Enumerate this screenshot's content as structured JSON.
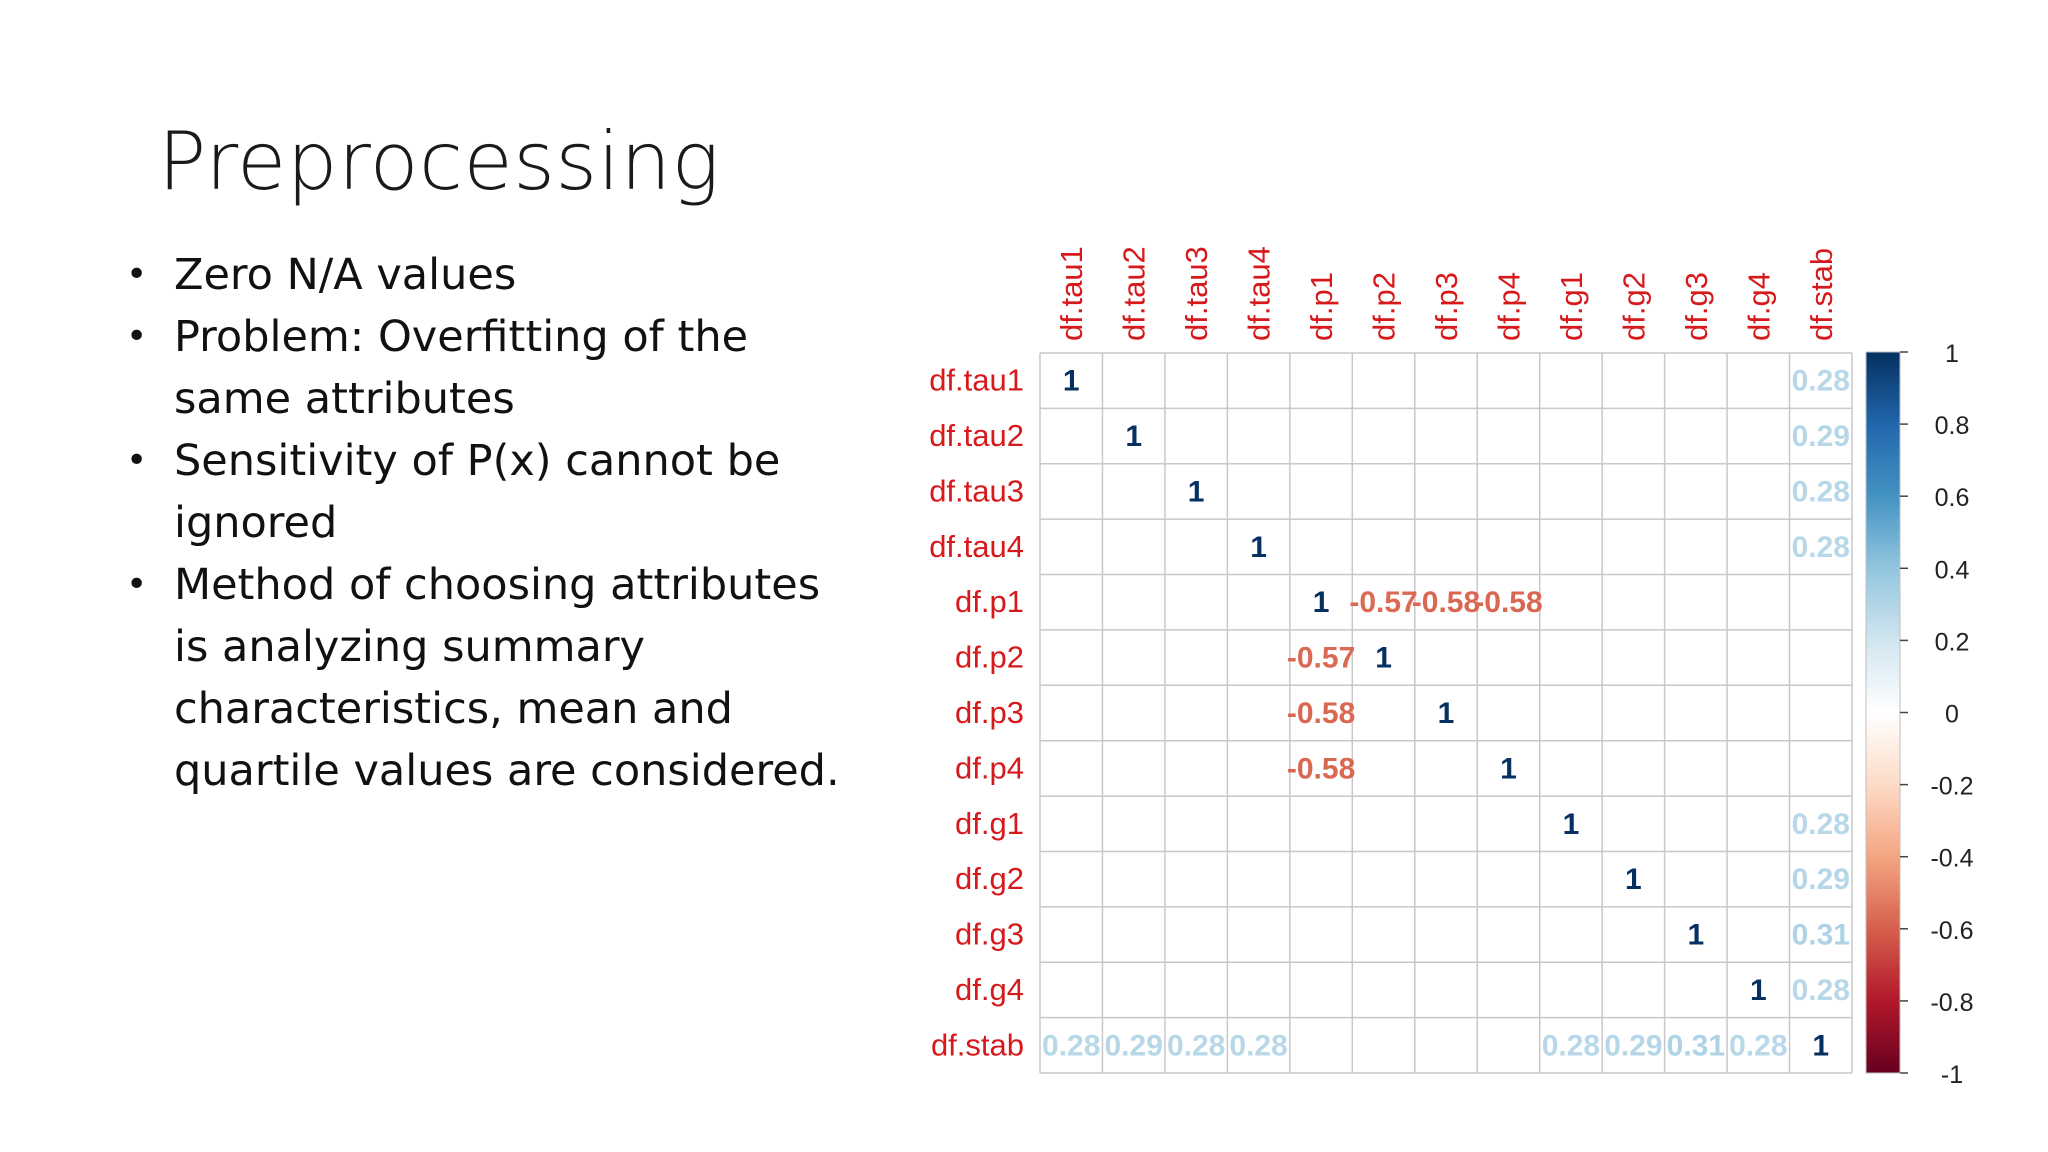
{
  "slide": {
    "title": "Preprocessing",
    "bullets": [
      {
        "lines": [
          "Zero N/A values"
        ]
      },
      {
        "lines": [
          "Problem: Overfitting of the",
          "same attributes"
        ]
      },
      {
        "lines": [
          "Sensitivity of P(x) cannot be",
          "ignored"
        ]
      },
      {
        "lines": [
          "Method of choosing attributes",
          "is analyzing summary",
          "characteristics, mean and",
          "quartile values are considered."
        ]
      }
    ]
  },
  "chart_data": {
    "type": "heatmap",
    "subtype": "correlation-matrix",
    "variables": [
      "df.tau1",
      "df.tau2",
      "df.tau3",
      "df.tau4",
      "df.p1",
      "df.p2",
      "df.p3",
      "df.p4",
      "df.g1",
      "df.g2",
      "df.g3",
      "df.g4",
      "df.stab"
    ],
    "label_color": "#d7191c",
    "cells": [
      {
        "r": 0,
        "c": 0,
        "v": 1,
        "label": "1"
      },
      {
        "r": 1,
        "c": 1,
        "v": 1,
        "label": "1"
      },
      {
        "r": 2,
        "c": 2,
        "v": 1,
        "label": "1"
      },
      {
        "r": 3,
        "c": 3,
        "v": 1,
        "label": "1"
      },
      {
        "r": 4,
        "c": 4,
        "v": 1,
        "label": "1"
      },
      {
        "r": 5,
        "c": 5,
        "v": 1,
        "label": "1"
      },
      {
        "r": 6,
        "c": 6,
        "v": 1,
        "label": "1"
      },
      {
        "r": 7,
        "c": 7,
        "v": 1,
        "label": "1"
      },
      {
        "r": 8,
        "c": 8,
        "v": 1,
        "label": "1"
      },
      {
        "r": 9,
        "c": 9,
        "v": 1,
        "label": "1"
      },
      {
        "r": 10,
        "c": 10,
        "v": 1,
        "label": "1"
      },
      {
        "r": 11,
        "c": 11,
        "v": 1,
        "label": "1"
      },
      {
        "r": 12,
        "c": 12,
        "v": 1,
        "label": "1"
      },
      {
        "r": 0,
        "c": 12,
        "v": 0.28,
        "label": "0.28"
      },
      {
        "r": 1,
        "c": 12,
        "v": 0.29,
        "label": "0.29"
      },
      {
        "r": 2,
        "c": 12,
        "v": 0.28,
        "label": "0.28"
      },
      {
        "r": 3,
        "c": 12,
        "v": 0.28,
        "label": "0.28"
      },
      {
        "r": 8,
        "c": 12,
        "v": 0.28,
        "label": "0.28"
      },
      {
        "r": 9,
        "c": 12,
        "v": 0.29,
        "label": "0.29"
      },
      {
        "r": 10,
        "c": 12,
        "v": 0.31,
        "label": "0.31"
      },
      {
        "r": 11,
        "c": 12,
        "v": 0.28,
        "label": "0.28"
      },
      {
        "r": 12,
        "c": 0,
        "v": 0.28,
        "label": "0.28"
      },
      {
        "r": 12,
        "c": 1,
        "v": 0.29,
        "label": "0.29"
      },
      {
        "r": 12,
        "c": 2,
        "v": 0.28,
        "label": "0.28"
      },
      {
        "r": 12,
        "c": 3,
        "v": 0.28,
        "label": "0.28"
      },
      {
        "r": 12,
        "c": 8,
        "v": 0.28,
        "label": "0.28"
      },
      {
        "r": 12,
        "c": 9,
        "v": 0.29,
        "label": "0.29"
      },
      {
        "r": 12,
        "c": 10,
        "v": 0.31,
        "label": "0.31"
      },
      {
        "r": 12,
        "c": 11,
        "v": 0.28,
        "label": "0.28"
      },
      {
        "r": 4,
        "c": 5,
        "v": -0.57,
        "label": "-0.57"
      },
      {
        "r": 4,
        "c": 6,
        "v": -0.58,
        "label": "-0.58"
      },
      {
        "r": 4,
        "c": 7,
        "v": -0.58,
        "label": "-0.58"
      },
      {
        "r": 5,
        "c": 4,
        "v": -0.57,
        "label": "-0.57"
      },
      {
        "r": 6,
        "c": 4,
        "v": -0.58,
        "label": "-0.58"
      },
      {
        "r": 7,
        "c": 4,
        "v": -0.58,
        "label": "-0.58"
      }
    ],
    "colorbar": {
      "range": [
        -1,
        1
      ],
      "ticks": [
        "1",
        "0.8",
        "0.6",
        "0.4",
        "0.2",
        "0",
        "-0.2",
        "-0.4",
        "-0.6",
        "-0.8",
        "-1"
      ],
      "tick_values": [
        1,
        0.8,
        0.6,
        0.4,
        0.2,
        0,
        -0.2,
        -0.4,
        -0.6,
        -0.8,
        -1
      ],
      "colors": [
        "#67001f",
        "#b2182b",
        "#d6604d",
        "#f4a582",
        "#fddbc7",
        "#ffffff",
        "#d1e5f0",
        "#92c5de",
        "#4393c3",
        "#2166ac",
        "#053061"
      ]
    },
    "grid": true
  }
}
